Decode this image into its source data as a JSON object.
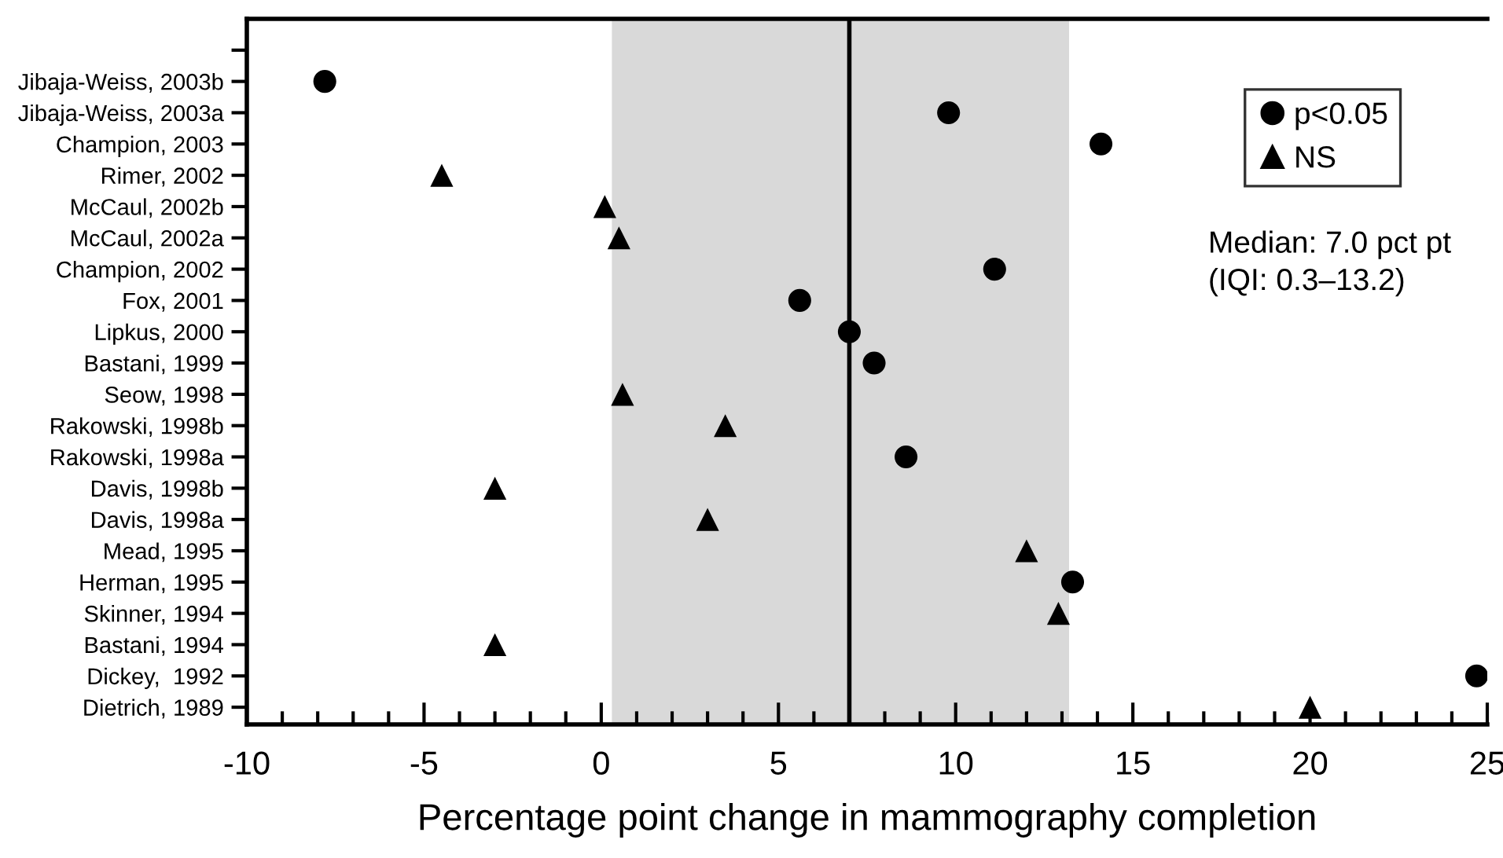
{
  "chart_data": {
    "type": "scatter",
    "xlabel": "Percentage point change in mammography completion",
    "categories": [
      null,
      "Jibaja-Weiss, 2003b",
      "Jibaja-Weiss, 2003a",
      "Champion, 2003",
      "Rimer, 2002",
      "McCaul, 2002b",
      "McCaul, 2002a",
      "Champion, 2002",
      "Fox, 2001",
      "Lipkus, 2000",
      "Bastani, 1999",
      "Seow, 1998",
      "Rakowski, 1998b",
      "Rakowski, 1998a",
      "Davis, 1998b",
      "Davis, 1998a",
      "Mead, 1995",
      "Herman, 1995",
      "Skinner, 1994",
      "Bastani, 1994",
      "Dickey,  1992",
      "Dietrich, 1989"
    ],
    "orientation": "horizontal",
    "series": [
      {
        "name": "p<0.05",
        "color": "#000000",
        "marker": "circle",
        "values": [
          null,
          -7.8,
          9.8,
          14.1,
          null,
          null,
          null,
          11.1,
          5.6,
          7.0,
          7.7,
          null,
          null,
          8.6,
          null,
          null,
          null,
          13.3,
          null,
          null,
          24.7,
          null
        ]
      },
      {
        "name": "NS",
        "color": "#000000",
        "marker": "triangle",
        "values": [
          null,
          null,
          null,
          null,
          -4.5,
          0.1,
          0.5,
          null,
          null,
          null,
          null,
          0.6,
          3.5,
          null,
          -3.0,
          3.0,
          12.0,
          null,
          12.9,
          -3.0,
          null,
          20.0
        ]
      }
    ],
    "xlim": [
      -10,
      25
    ],
    "xticks": [
      -10,
      {
        "value": -9,
        "label": null
      },
      {
        "value": -8,
        "label": null
      },
      {
        "value": -7,
        "label": null
      },
      {
        "value": -6,
        "label": null
      },
      -5,
      {
        "value": -4,
        "label": null
      },
      {
        "value": -3,
        "label": null
      },
      {
        "value": -2,
        "label": null
      },
      {
        "value": -1,
        "label": null
      },
      0,
      {
        "value": 1,
        "label": null
      },
      {
        "value": 2,
        "label": null
      },
      {
        "value": 3,
        "label": null
      },
      {
        "value": 4,
        "label": null
      },
      5,
      {
        "value": 6,
        "label": null
      },
      {
        "value": 7,
        "label": null
      },
      {
        "value": 8,
        "label": null
      },
      {
        "value": 9,
        "label": null
      },
      10,
      {
        "value": 11,
        "label": null
      },
      {
        "value": 12,
        "label": null
      },
      {
        "value": 13,
        "label": null
      },
      {
        "value": 14,
        "label": null
      },
      15,
      {
        "value": 16,
        "label": null
      },
      {
        "value": 17,
        "label": null
      },
      {
        "value": 18,
        "label": null
      },
      {
        "value": 19,
        "label": null
      },
      20,
      {
        "value": 21,
        "label": null
      },
      {
        "value": 22,
        "label": null
      },
      {
        "value": 23,
        "label": null
      },
      {
        "value": 24,
        "label": null
      },
      25
    ],
    "bands": [
      {
        "axis": "x",
        "from": 0.3,
        "to": 13.2,
        "color": "#d9d9d9"
      }
    ],
    "ref_lines": [
      {
        "axis": "x",
        "value": 7.0,
        "color": "#000000",
        "line_style": "solid"
      }
    ],
    "annotations": [
      "Median: 7.0 pct pt\n(IQI: 0.3–13.2)"
    ],
    "legend": "top right",
    "grid": false
  }
}
